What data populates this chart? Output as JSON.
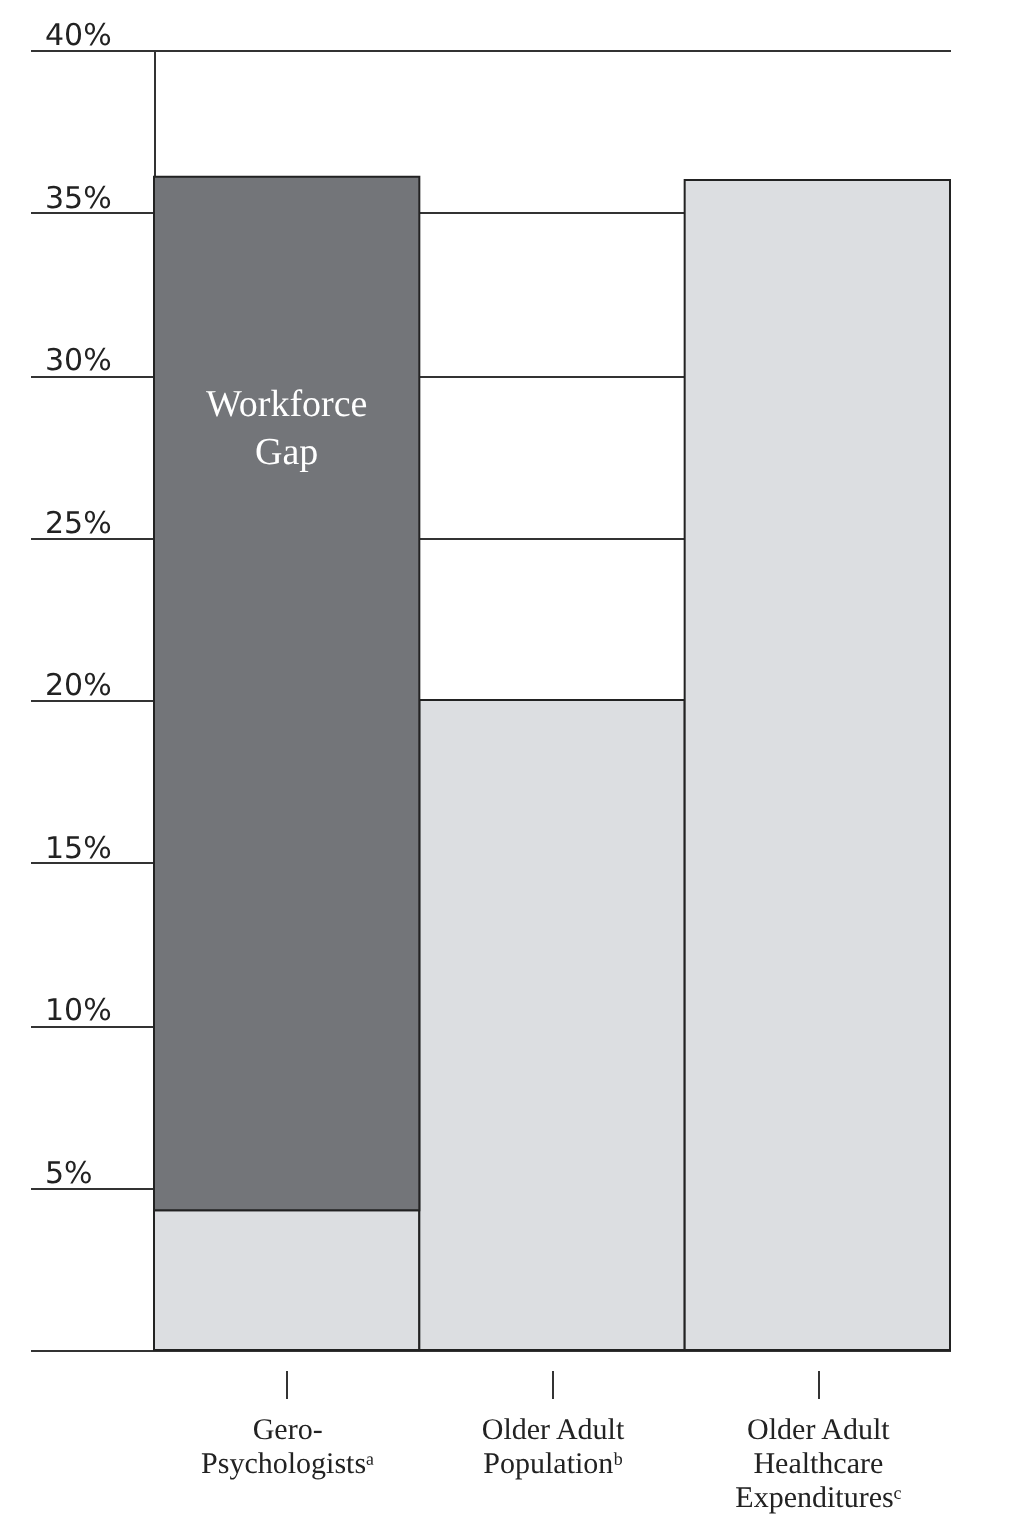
{
  "chart_data": {
    "type": "bar",
    "stacked": true,
    "categories": [
      "Gero-Psychologistsᵃ",
      "Older Adult Populationᵇ",
      "Older Adult Healthcare Expendituresᶜ"
    ],
    "series": [
      {
        "color": "#dcdee1",
        "values": [
          4.3,
          20,
          36
        ]
      },
      {
        "name": "Workforce Gap",
        "color": "#737579",
        "values": [
          31.8,
          null,
          null
        ]
      }
    ],
    "ylim": [
      0,
      40
    ],
    "yticks": [
      {
        "value": 0,
        "label": null
      },
      {
        "value": 5,
        "label": "5%"
      },
      {
        "value": 10,
        "label": "10%"
      },
      {
        "value": 15,
        "label": "15%"
      },
      {
        "value": 20,
        "label": "20%"
      },
      {
        "value": 25,
        "label": "25%"
      },
      {
        "value": 30,
        "label": "30%"
      },
      {
        "value": 35,
        "label": "35%"
      },
      {
        "value": 40,
        "label": "40%"
      }
    ],
    "grid": "y"
  }
}
